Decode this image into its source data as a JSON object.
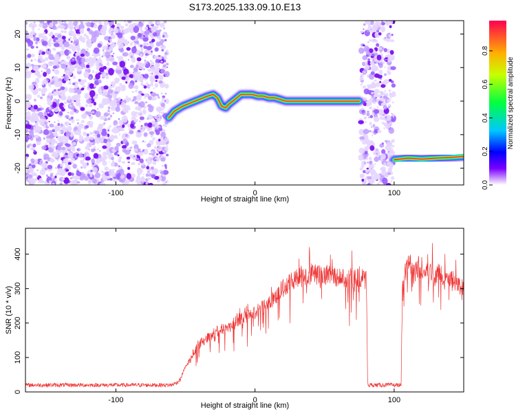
{
  "title": "S173.2025.133.09.10.E13",
  "spectrogram": {
    "type": "heatmap",
    "xlabel": "Height of straight line (km)",
    "ylabel": "Frequency (Hz)",
    "xlim": [
      -165,
      150
    ],
    "ylim": [
      -25,
      24
    ],
    "xticks": [
      -100,
      0,
      100
    ],
    "yticks": [
      -20,
      -10,
      0,
      10,
      20
    ],
    "noise_segments": [
      [
        -165,
        -63
      ],
      [
        76,
        100
      ]
    ],
    "signal_trace": {
      "x": [
        -62,
        -58,
        -52,
        -46,
        -40,
        -34,
        -30,
        -27,
        -24,
        -21,
        -19,
        -16,
        -13,
        -10,
        -6,
        -2,
        2,
        6,
        10,
        14,
        18,
        22,
        30,
        40,
        50,
        60,
        70,
        75
      ],
      "y": [
        -5,
        -3,
        -1.5,
        -0.5,
        0.5,
        1.5,
        2,
        1,
        -1.5,
        -2,
        -1,
        0,
        1,
        2,
        2,
        2,
        1.5,
        1.5,
        1,
        1,
        0.5,
        0,
        0,
        0,
        0,
        0,
        0,
        0
      ]
    },
    "signal_trace_2": {
      "x": [
        100,
        110,
        120,
        130,
        140,
        150
      ],
      "y": [
        -17.5,
        -17,
        -17.3,
        -17,
        -16.8,
        -16.5
      ]
    }
  },
  "colorbar": {
    "label": "Normalized spectral amplitude",
    "ticks": [
      0.0,
      0.2,
      0.4,
      0.6,
      0.8
    ],
    "tick_labels": [
      "0.0",
      "0.2",
      "0.4",
      "0.6",
      "0.8"
    ],
    "range": [
      0,
      0.98
    ]
  },
  "snr": {
    "type": "line",
    "xlabel": "Height of straight line (km)",
    "ylabel": "SNR (10 * v/v)",
    "xlim": [
      -165,
      150
    ],
    "ylim": [
      0,
      475
    ],
    "xticks": [
      -100,
      0,
      100
    ],
    "yticks": [
      0,
      100,
      200,
      300,
      400
    ],
    "color": "#ee3333",
    "envelope": {
      "x": [
        -165,
        -60,
        -55,
        -50,
        -45,
        -40,
        -30,
        -20,
        -10,
        0,
        10,
        20,
        30,
        40,
        50,
        60,
        70,
        80,
        81,
        105,
        106,
        110,
        120,
        130,
        140,
        150
      ],
      "y": [
        20,
        20,
        30,
        70,
        110,
        140,
        170,
        190,
        210,
        230,
        260,
        300,
        330,
        340,
        340,
        335,
        330,
        330,
        20,
        20,
        320,
        370,
        360,
        345,
        330,
        300
      ]
    }
  }
}
